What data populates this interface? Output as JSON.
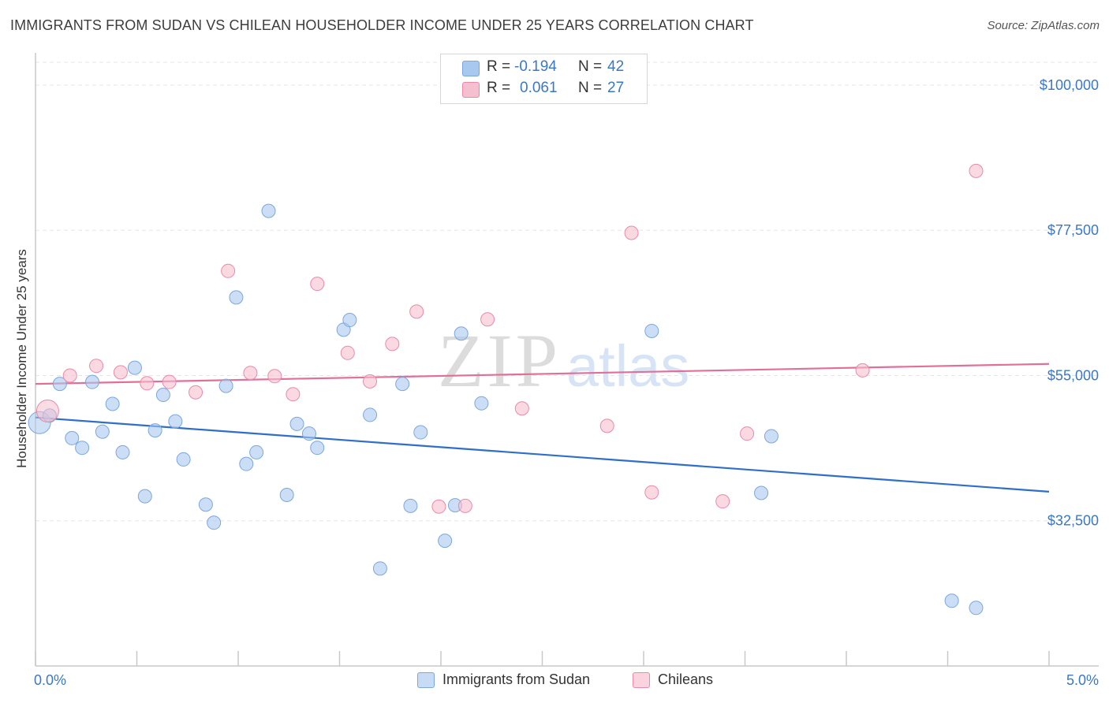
{
  "title": "IMMIGRANTS FROM SUDAN VS CHILEAN HOUSEHOLDER INCOME UNDER 25 YEARS CORRELATION CHART",
  "source": "Source: ZipAtlas.com",
  "watermark": {
    "zip": "ZIP",
    "atlas": "atlas"
  },
  "stats": [
    {
      "r_label": "R =",
      "r_value": "-0.194",
      "n_label": "N =",
      "n_value": "42",
      "color": "#a9c8ef",
      "border": "#7ba7de"
    },
    {
      "r_label": "R =",
      "r_value": "0.061",
      "n_label": "N =",
      "n_value": "27",
      "color": "#f6bfd0",
      "border": "#e98aa8"
    }
  ],
  "legend": [
    {
      "label": "Immigrants from Sudan",
      "color": "#c7dbf5",
      "border": "#7ba7de"
    },
    {
      "label": "Chileans",
      "color": "#fad3df",
      "border": "#e98aa8"
    }
  ],
  "chart_data": {
    "type": "scatter",
    "ylabel": "Householder Income Under 25 years",
    "xlim": [
      0,
      5
    ],
    "ylim": [
      10000,
      105000
    ],
    "x_tick_labels": {
      "left": "0.0%",
      "right": "5.0%"
    },
    "y_ticks": [
      {
        "value": 100000,
        "label": "$100,000"
      },
      {
        "value": 77500,
        "label": "$77,500"
      },
      {
        "value": 55000,
        "label": "$55,000"
      },
      {
        "value": 32500,
        "label": "$32,500"
      }
    ],
    "series": [
      {
        "name": "Immigrants from Sudan",
        "color": "#a9c8ef",
        "stroke": "#7ba7de",
        "trend": {
          "x": [
            0,
            5
          ],
          "y": [
            48500,
            37000
          ],
          "color": "#2f6fca"
        },
        "points": [
          [
            0.02,
            47700
          ],
          [
            0.07,
            48800
          ],
          [
            0.12,
            53700
          ],
          [
            0.18,
            45300
          ],
          [
            0.23,
            43800
          ],
          [
            0.28,
            54000
          ],
          [
            0.33,
            46300
          ],
          [
            0.38,
            50600
          ],
          [
            0.43,
            43100
          ],
          [
            0.49,
            56200
          ],
          [
            0.54,
            36300
          ],
          [
            0.59,
            46500
          ],
          [
            0.63,
            52000
          ],
          [
            0.69,
            47900
          ],
          [
            0.73,
            42000
          ],
          [
            0.84,
            35000
          ],
          [
            0.88,
            32200
          ],
          [
            0.94,
            53400
          ],
          [
            0.99,
            67100
          ],
          [
            1.04,
            41300
          ],
          [
            1.09,
            43100
          ],
          [
            1.15,
            80500
          ],
          [
            1.24,
            36500
          ],
          [
            1.29,
            47500
          ],
          [
            1.35,
            46000
          ],
          [
            1.39,
            43800
          ],
          [
            1.52,
            62100
          ],
          [
            1.55,
            63600
          ],
          [
            1.65,
            48900
          ],
          [
            1.7,
            25100
          ],
          [
            1.81,
            53700
          ],
          [
            1.85,
            34800
          ],
          [
            1.9,
            46200
          ],
          [
            2.02,
            29400
          ],
          [
            2.07,
            34900
          ],
          [
            2.1,
            61500
          ],
          [
            2.2,
            50700
          ],
          [
            3.04,
            61900
          ],
          [
            3.58,
            36800
          ],
          [
            3.63,
            45600
          ],
          [
            4.52,
            20100
          ],
          [
            4.64,
            19000
          ]
        ]
      },
      {
        "name": "Chileans",
        "color": "#f6bfd0",
        "stroke": "#e98aa8",
        "trend": {
          "x": [
            0,
            5
          ],
          "y": [
            53700,
            56800
          ],
          "color": "#e0709a"
        },
        "points": [
          [
            0.06,
            49500
          ],
          [
            0.17,
            55000
          ],
          [
            0.3,
            56500
          ],
          [
            0.42,
            55500
          ],
          [
            0.55,
            53800
          ],
          [
            0.66,
            54000
          ],
          [
            0.79,
            52400
          ],
          [
            0.95,
            71200
          ],
          [
            1.06,
            55400
          ],
          [
            1.18,
            54900
          ],
          [
            1.27,
            52100
          ],
          [
            1.39,
            69200
          ],
          [
            1.54,
            58500
          ],
          [
            1.65,
            54100
          ],
          [
            1.76,
            59900
          ],
          [
            1.88,
            64900
          ],
          [
            1.99,
            34700
          ],
          [
            2.12,
            34800
          ],
          [
            2.23,
            63700
          ],
          [
            2.4,
            49900
          ],
          [
            2.82,
            47200
          ],
          [
            2.94,
            77100
          ],
          [
            3.04,
            36900
          ],
          [
            3.39,
            35500
          ],
          [
            3.51,
            46000
          ],
          [
            4.08,
            55800
          ],
          [
            4.64,
            86700
          ]
        ]
      }
    ]
  }
}
